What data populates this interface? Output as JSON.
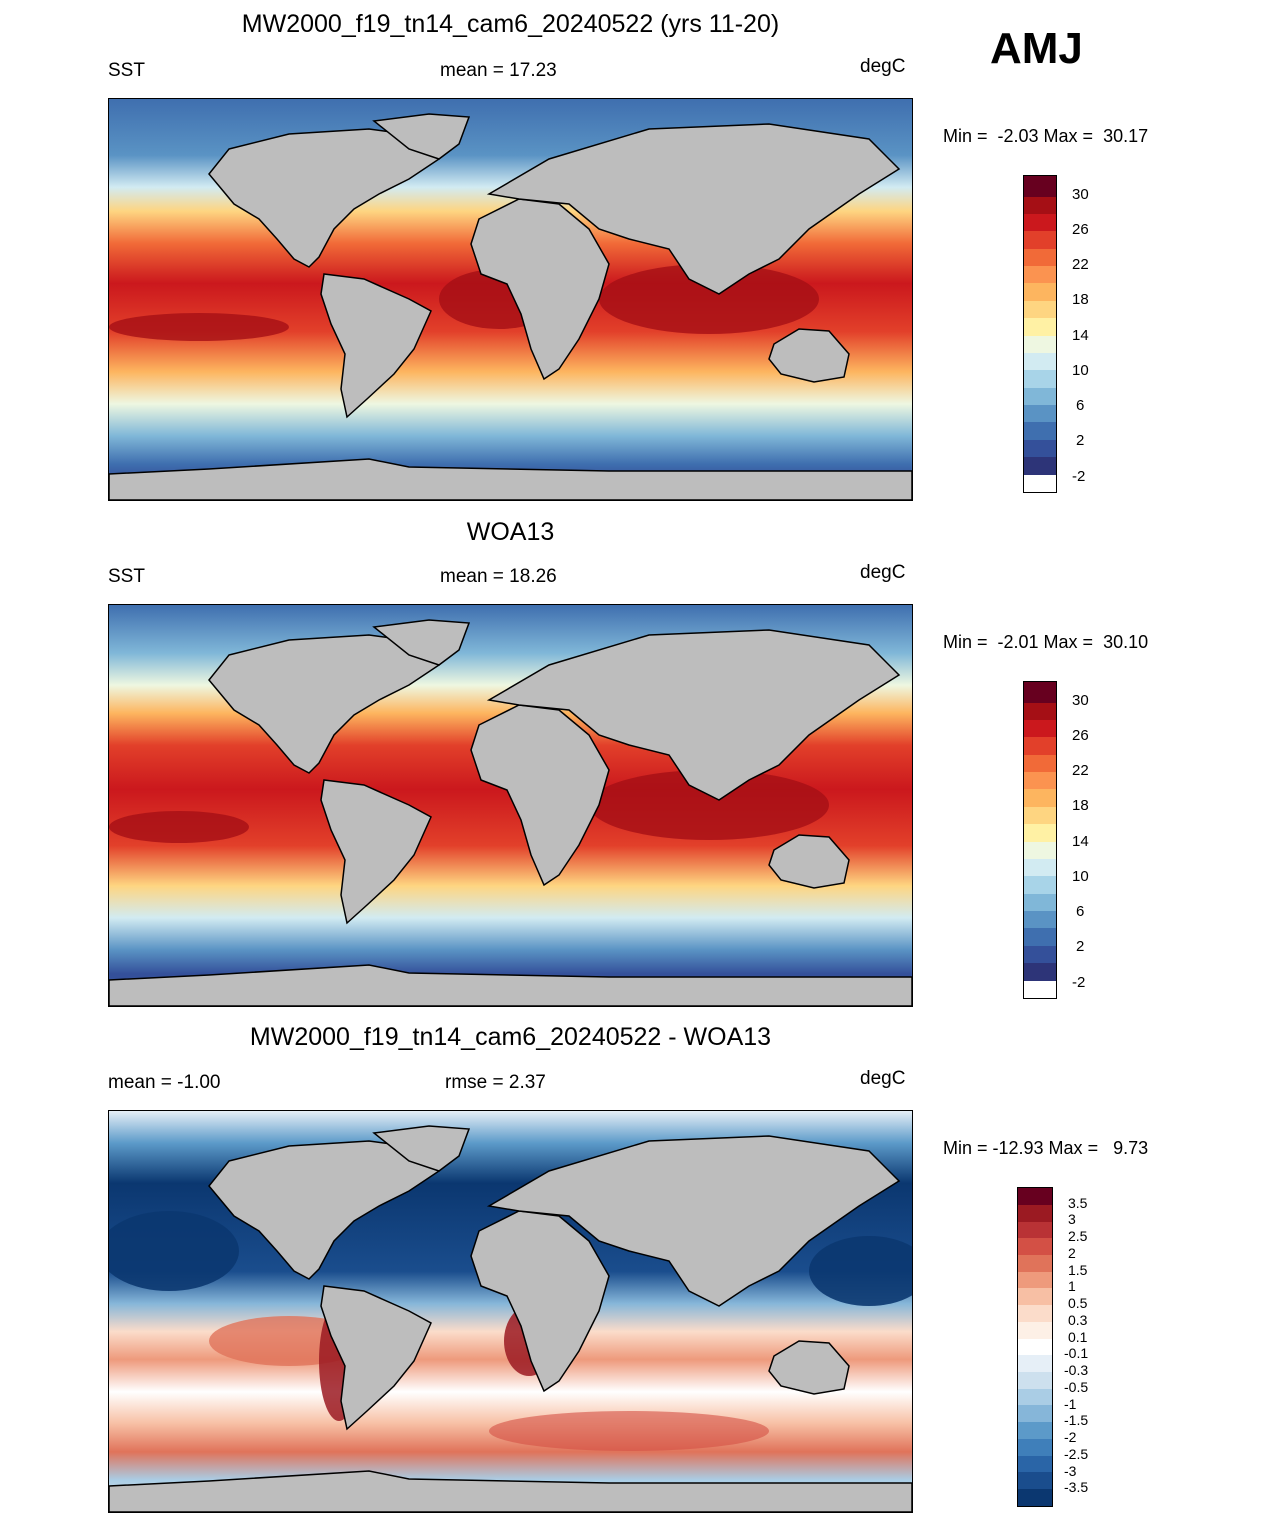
{
  "season": "AMJ",
  "panels": [
    {
      "title": "MW2000_f19_tn14_cam6_20240522 (yrs 11-20)",
      "left_label": "SST",
      "center_label": "mean =  17.23",
      "units": "degC",
      "minmax": "Min =  -2.03 Max =  30.17",
      "colorbar_labels": [
        "30",
        "26",
        "22",
        "18",
        "14",
        "10",
        "6",
        "2",
        "-2"
      ]
    },
    {
      "title": "WOA13",
      "left_label": "SST",
      "center_label": "mean =  18.26",
      "units": "degC",
      "minmax": "Min =  -2.01 Max =  30.10",
      "colorbar_labels": [
        "30",
        "26",
        "22",
        "18",
        "14",
        "10",
        "6",
        "2",
        "-2"
      ]
    },
    {
      "title": "MW2000_f19_tn14_cam6_20240522 - WOA13",
      "left_label": "mean =  -1.00",
      "center_label": "rmse =   2.37",
      "units": "degC",
      "minmax": "Min = -12.93 Max =   9.73",
      "colorbar_labels": [
        "3.5",
        "3",
        "2.5",
        "2",
        "1.5",
        "1",
        "0.5",
        "0.3",
        "0.1",
        "-0.1",
        "-0.3",
        "-0.5",
        "-1",
        "-1.5",
        "-2",
        "-2.5",
        "-3",
        "-3.5"
      ]
    }
  ],
  "colors": {
    "sst_scale": [
      "#67001f",
      "#a50f15",
      "#cb181d",
      "#e2402a",
      "#f16a38",
      "#fb9350",
      "#fdb55f",
      "#fed581",
      "#fff1a4",
      "#eef7e1",
      "#d2ebf2",
      "#a8d4e8",
      "#80b7d8",
      "#5a93c4",
      "#3f6faf",
      "#34509a",
      "#2d3478"
    ],
    "diff_scale": [
      "#67001f",
      "#9b1a22",
      "#b93235",
      "#d35045",
      "#e0735a",
      "#ee9a7c",
      "#f7bfa4",
      "#fbdcca",
      "#fdf0e6",
      "#ffffff",
      "#e6eff7",
      "#cde0ee",
      "#aacde5",
      "#86b6d9",
      "#5c9ac9",
      "#3f7fba",
      "#2a65a7",
      "#1a4d8d",
      "#0b3770"
    ],
    "land": "#bdbdbd"
  }
}
